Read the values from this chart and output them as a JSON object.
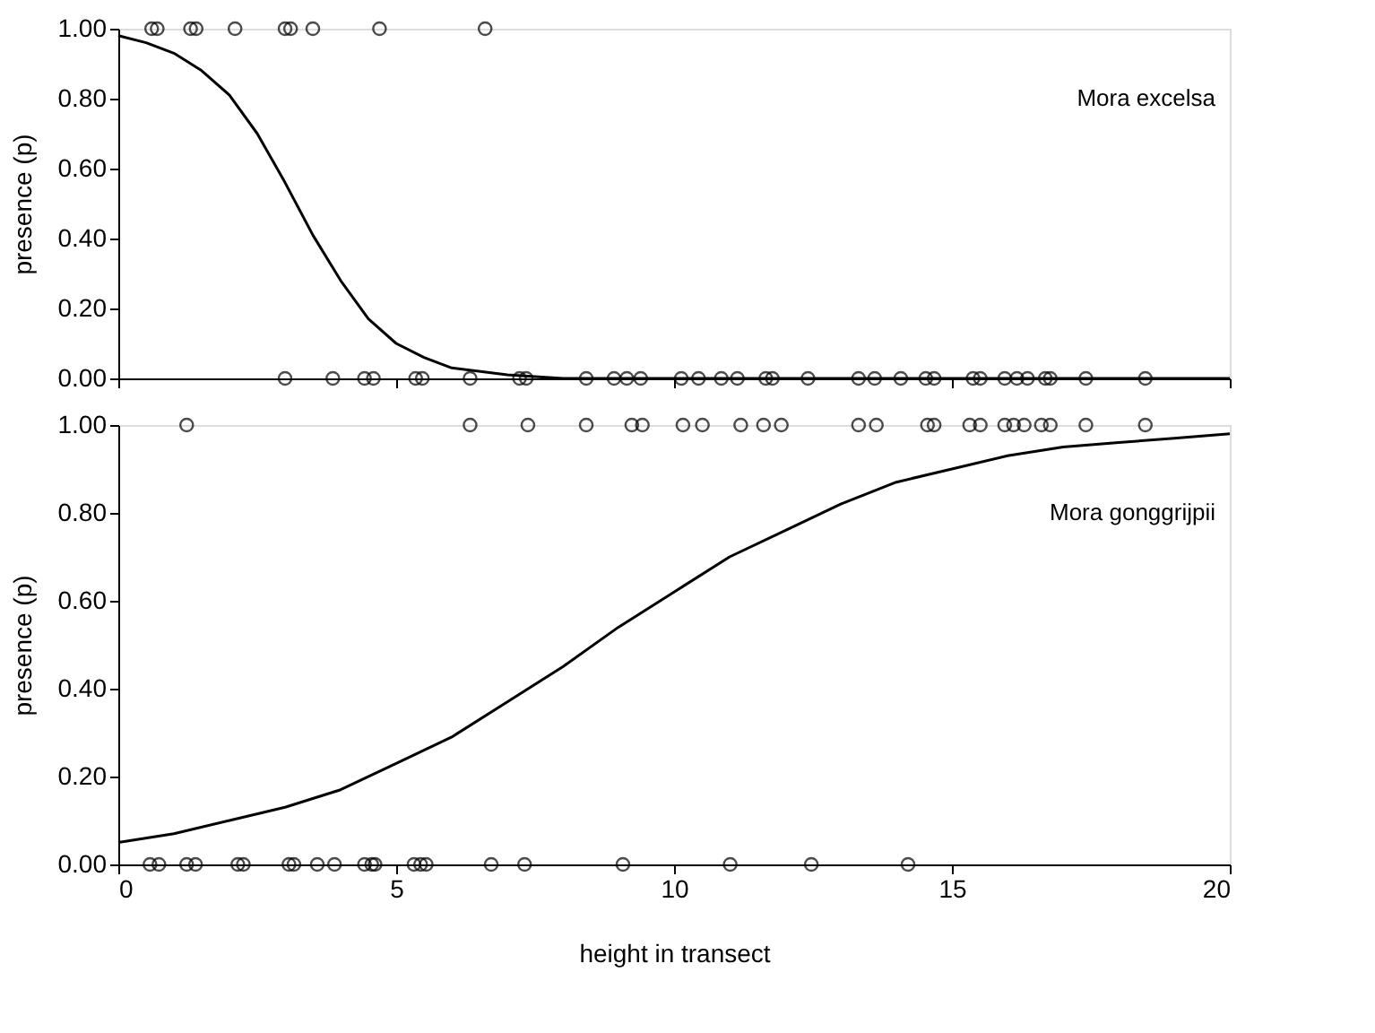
{
  "chart_data": [
    {
      "type": "scatter",
      "ylabel": "presence (p)",
      "annotations": [
        "Mora excelsa"
      ],
      "xlim": [
        0,
        20
      ],
      "xticks": [
        0,
        5,
        10,
        15,
        20
      ],
      "ylim": [
        0,
        1
      ],
      "yticks": [
        {
          "value": 0,
          "label": "0.00"
        },
        {
          "value": 0.2,
          "label": "0.20"
        },
        {
          "value": 0.4,
          "label": "0.40"
        },
        {
          "value": 0.6,
          "label": "0.60"
        },
        {
          "value": 0.8,
          "label": "0.80"
        },
        {
          "value": 1,
          "label": "1.00"
        }
      ],
      "tick_labels": "y",
      "grid": false,
      "series": [
        {
          "marker": "circle",
          "color": "#000000",
          "x": [
            0.6,
            0.7,
            1.3,
            1.4,
            2.1,
            3.0,
            3.1,
            3.5,
            4.7,
            6.6,
            3.0,
            3.86,
            4.43,
            4.59,
            5.35,
            5.47,
            6.33,
            7.22,
            7.34,
            8.42,
            8.92,
            9.15,
            9.4,
            10.13,
            10.44,
            10.85,
            11.14,
            11.65,
            11.77,
            12.41,
            13.32,
            13.61,
            14.08,
            14.53,
            14.68,
            15.38,
            15.51,
            15.95,
            16.17,
            16.36,
            16.68,
            16.77,
            17.41,
            18.48
          ],
          "values": [
            1,
            1,
            1,
            1,
            1,
            1,
            1,
            1,
            1,
            1,
            0,
            0,
            0,
            0,
            0,
            0,
            0,
            0,
            0,
            0,
            0,
            0,
            0,
            0,
            0,
            0,
            0,
            0,
            0,
            0,
            0,
            0,
            0,
            0,
            0,
            0,
            0,
            0,
            0,
            0,
            0,
            0,
            0,
            0
          ]
        },
        {
          "type": "line",
          "color": "#000000",
          "line_style": "solid",
          "x": [
            0,
            0.5,
            1,
            1.5,
            2,
            2.5,
            3,
            3.5,
            4,
            4.5,
            5,
            5.5,
            6,
            7,
            8,
            10,
            12,
            15,
            20
          ],
          "values": [
            0.98,
            0.96,
            0.93,
            0.88,
            0.81,
            0.7,
            0.56,
            0.41,
            0.28,
            0.17,
            0.1,
            0.06,
            0.03,
            0.01,
            0,
            0,
            0,
            0,
            0
          ]
        }
      ]
    },
    {
      "type": "scatter",
      "xlabel": "height in transect",
      "ylabel": "presence (p)",
      "annotations": [
        "Mora gonggrijpii"
      ],
      "xlim": [
        0,
        20
      ],
      "xticks": [
        0,
        5,
        10,
        15,
        20
      ],
      "ylim": [
        0,
        1
      ],
      "yticks": [
        {
          "value": 0,
          "label": "0.00"
        },
        {
          "value": 0.2,
          "label": "0.20"
        },
        {
          "value": 0.4,
          "label": "0.40"
        },
        {
          "value": 0.6,
          "label": "0.60"
        },
        {
          "value": 0.8,
          "label": "0.80"
        },
        {
          "value": 1,
          "label": "1.00"
        }
      ],
      "grid": false,
      "series": [
        {
          "marker": "circle",
          "color": "#000000",
          "x": [
            1.23,
            6.33,
            7.37,
            8.42,
            9.24,
            9.43,
            10.16,
            10.51,
            11.2,
            11.61,
            11.93,
            13.32,
            13.64,
            14.56,
            14.68,
            15.32,
            15.51,
            15.95,
            16.11,
            16.3,
            16.61,
            16.77,
            17.41,
            18.48,
            0.57,
            0.73,
            1.23,
            1.39,
            2.15,
            2.25,
            3.07,
            3.16,
            3.58,
            3.89,
            4.43,
            4.56,
            4.62,
            5.32,
            5.44,
            5.54,
            6.71,
            7.31,
            9.08,
            11.01,
            12.47,
            14.21
          ],
          "values": [
            1,
            1,
            1,
            1,
            1,
            1,
            1,
            1,
            1,
            1,
            1,
            1,
            1,
            1,
            1,
            1,
            1,
            1,
            1,
            1,
            1,
            1,
            1,
            1,
            0,
            0,
            0,
            0,
            0,
            0,
            0,
            0,
            0,
            0,
            0,
            0,
            0,
            0,
            0,
            0,
            0,
            0,
            0,
            0,
            0,
            0
          ]
        },
        {
          "type": "line",
          "color": "#000000",
          "line_style": "solid",
          "x": [
            0,
            1,
            2,
            3,
            4,
            5,
            6,
            7,
            8,
            9,
            10,
            11,
            12,
            13,
            14,
            15,
            16,
            17,
            18,
            19,
            20
          ],
          "values": [
            0.05,
            0.07,
            0.1,
            0.13,
            0.17,
            0.23,
            0.29,
            0.37,
            0.45,
            0.54,
            0.62,
            0.7,
            0.76,
            0.82,
            0.87,
            0.9,
            0.93,
            0.95,
            0.96,
            0.97,
            0.98
          ]
        }
      ]
    }
  ]
}
